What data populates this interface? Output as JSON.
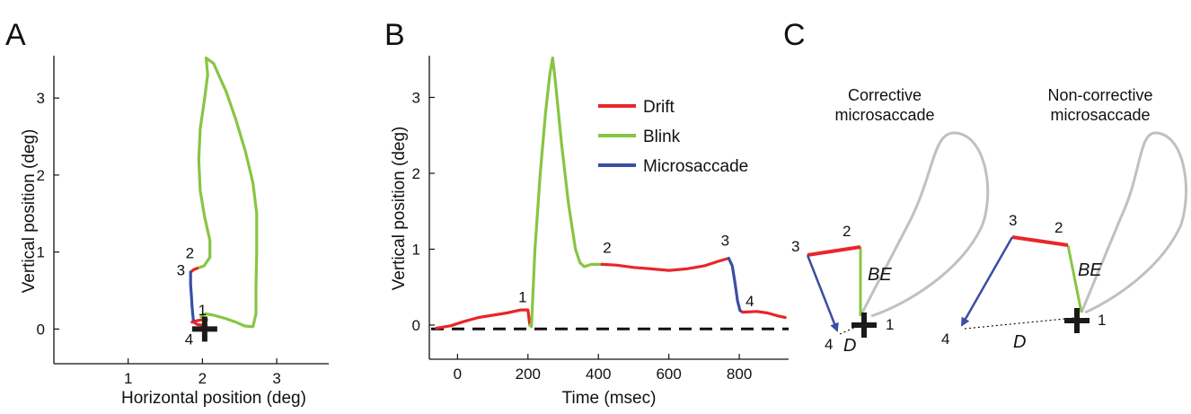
{
  "panels": {
    "a": "A",
    "b": "B",
    "c": "C"
  },
  "colors": {
    "drift": "#e8262a",
    "blink": "#88c542",
    "microsaccade": "#3a4ea2",
    "loop": "#c0c0c0",
    "text": "#111111"
  },
  "legend": [
    {
      "label": "Drift",
      "color": "#e8262a"
    },
    {
      "label": "Blink",
      "color": "#88c542"
    },
    {
      "label": "Microsaccade",
      "color": "#3a4ea2"
    }
  ],
  "chart_data": [
    {
      "panel": "A",
      "type": "line",
      "title": "",
      "xlabel": "Horizontal position (deg)",
      "ylabel": "Vertical position (deg)",
      "xlim": [
        0,
        3.7
      ],
      "ylim": [
        -0.45,
        3.55
      ],
      "xticks": [
        1,
        2,
        3
      ],
      "yticks": [
        0,
        1,
        2,
        3
      ],
      "grid": false,
      "fixation_marker": {
        "x": 2.03,
        "y": 0.0,
        "shape": "plus"
      },
      "segments": [
        {
          "name": "Drift",
          "color": "#e8262a",
          "points": [
            [
              1.86,
              0.09
            ],
            [
              1.93,
              0.11
            ],
            [
              2.0,
              0.12
            ],
            [
              2.06,
              0.12
            ]
          ]
        },
        {
          "name": "Blink",
          "color": "#88c542",
          "points": [
            [
              2.06,
              0.12
            ],
            [
              1.98,
              0.16
            ],
            [
              2.04,
              0.2
            ],
            [
              2.15,
              0.18
            ],
            [
              2.3,
              0.14
            ],
            [
              2.45,
              0.09
            ],
            [
              2.57,
              0.04
            ],
            [
              2.68,
              0.03
            ],
            [
              2.72,
              0.2
            ],
            [
              2.72,
              0.55
            ],
            [
              2.73,
              1.0
            ],
            [
              2.73,
              1.5
            ],
            [
              2.68,
              1.9
            ],
            [
              2.58,
              2.3
            ],
            [
              2.45,
              2.72
            ],
            [
              2.32,
              3.08
            ],
            [
              2.15,
              3.45
            ],
            [
              2.05,
              3.52
            ],
            [
              2.07,
              3.3
            ],
            [
              2.03,
              3.0
            ],
            [
              1.97,
              2.6
            ],
            [
              1.95,
              2.2
            ],
            [
              1.97,
              1.8
            ],
            [
              2.03,
              1.45
            ],
            [
              2.1,
              1.15
            ],
            [
              2.1,
              0.93
            ],
            [
              2.02,
              0.82
            ],
            [
              1.93,
              0.79
            ]
          ]
        },
        {
          "name": "Drift",
          "color": "#e8262a",
          "points": [
            [
              1.93,
              0.79
            ],
            [
              1.88,
              0.77
            ],
            [
              1.84,
              0.74
            ]
          ]
        },
        {
          "name": "Microsaccade",
          "color": "#3a4ea2",
          "points": [
            [
              1.84,
              0.74
            ],
            [
              1.84,
              0.58
            ],
            [
              1.85,
              0.45
            ],
            [
              1.86,
              0.3
            ],
            [
              1.87,
              0.18
            ],
            [
              1.88,
              0.09
            ]
          ]
        },
        {
          "name": "Drift",
          "color": "#e8262a",
          "points": [
            [
              1.88,
              0.09
            ],
            [
              1.93,
              0.06
            ],
            [
              2.0,
              0.05
            ],
            [
              2.05,
              0.04
            ]
          ]
        }
      ],
      "annotations": [
        {
          "text": "1",
          "x": 2.0,
          "y": 0.18
        },
        {
          "text": "2",
          "x": 1.83,
          "y": 0.92
        },
        {
          "text": "3",
          "x": 1.71,
          "y": 0.7
        },
        {
          "text": "4",
          "x": 1.82,
          "y": -0.2
        }
      ]
    },
    {
      "panel": "B",
      "type": "line",
      "title": "",
      "xlabel": "Time (msec)",
      "ylabel": "Vertical position (deg)",
      "xlim": [
        -80,
        940
      ],
      "ylim": [
        -0.45,
        3.55
      ],
      "xticks": [
        0,
        200,
        400,
        600,
        800
      ],
      "yticks": [
        0,
        1,
        2,
        3
      ],
      "grid": false,
      "legend_position": "top-right",
      "baseline": {
        "y": -0.05,
        "style": "dashed"
      },
      "segments": [
        {
          "name": "Drift",
          "color": "#e8262a",
          "points": [
            [
              -60,
              -0.04
            ],
            [
              -20,
              -0.01
            ],
            [
              20,
              0.05
            ],
            [
              60,
              0.1
            ],
            [
              100,
              0.13
            ],
            [
              140,
              0.16
            ],
            [
              180,
              0.2
            ],
            [
              200,
              0.2
            ],
            [
              205,
              0.0
            ]
          ]
        },
        {
          "name": "Blink",
          "color": "#88c542",
          "points": [
            [
              205,
              0.0
            ],
            [
              210,
              -0.02
            ],
            [
              220,
              1.0
            ],
            [
              235,
              2.0
            ],
            [
              250,
              2.8
            ],
            [
              262,
              3.3
            ],
            [
              270,
              3.52
            ],
            [
              278,
              3.2
            ],
            [
              295,
              2.4
            ],
            [
              315,
              1.6
            ],
            [
              335,
              1.0
            ],
            [
              348,
              0.82
            ],
            [
              360,
              0.77
            ],
            [
              380,
              0.8
            ],
            [
              410,
              0.8
            ]
          ]
        },
        {
          "name": "Drift",
          "color": "#e8262a",
          "points": [
            [
              410,
              0.8
            ],
            [
              450,
              0.79
            ],
            [
              500,
              0.76
            ],
            [
              550,
              0.74
            ],
            [
              600,
              0.72
            ],
            [
              650,
              0.74
            ],
            [
              700,
              0.78
            ],
            [
              740,
              0.84
            ],
            [
              770,
              0.88
            ]
          ]
        },
        {
          "name": "Microsaccade",
          "color": "#3a4ea2",
          "points": [
            [
              770,
              0.88
            ],
            [
              780,
              0.78
            ],
            [
              788,
              0.55
            ],
            [
              795,
              0.32
            ],
            [
              802,
              0.19
            ],
            [
              810,
              0.17
            ]
          ]
        },
        {
          "name": "Drift",
          "color": "#e8262a",
          "points": [
            [
              810,
              0.17
            ],
            [
              850,
              0.18
            ],
            [
              880,
              0.16
            ],
            [
              910,
              0.12
            ],
            [
              930,
              0.1
            ]
          ]
        }
      ],
      "annotations": [
        {
          "text": "1",
          "x": 185,
          "y": 0.3
        },
        {
          "text": "2",
          "x": 425,
          "y": 0.95
        },
        {
          "text": "3",
          "x": 760,
          "y": 1.05
        },
        {
          "text": "4",
          "x": 830,
          "y": 0.25
        }
      ]
    }
  ],
  "diagram": {
    "corrective": {
      "title_line1": "Corrective",
      "title_line2": "microsaccade",
      "labels": {
        "p1": "1",
        "p2": "2",
        "p3": "3",
        "p4": "4",
        "be": "BE",
        "d": "D"
      }
    },
    "noncorrective": {
      "title_line1": "Non-corrective",
      "title_line2": "microsaccade",
      "labels": {
        "p1": "1",
        "p2": "2",
        "p3": "3",
        "p4": "4",
        "be": "BE",
        "d": "D"
      }
    }
  }
}
